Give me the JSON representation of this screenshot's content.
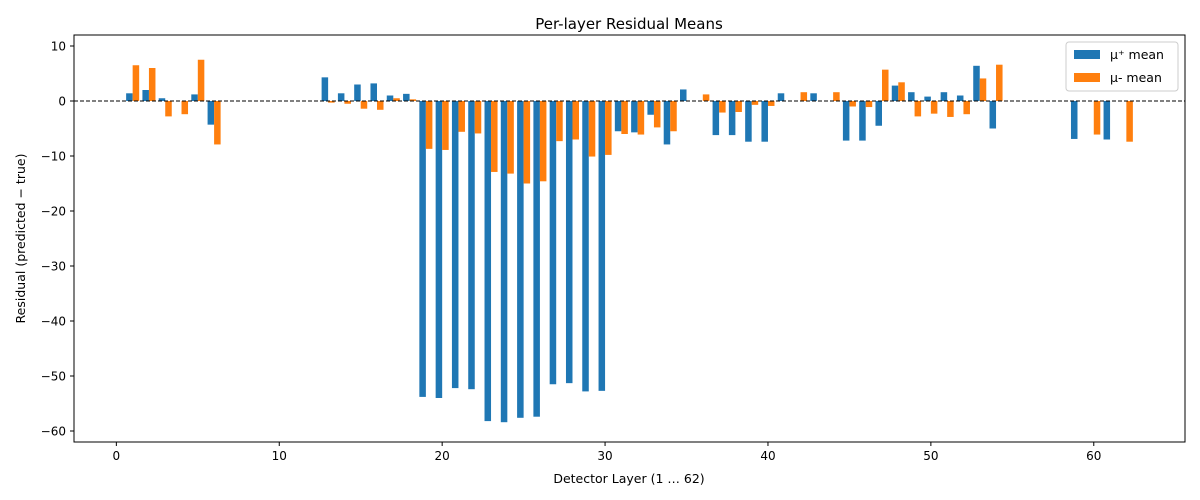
{
  "chart_data": {
    "type": "bar",
    "title": "Per-layer Residual Means",
    "xlabel": "Detector Layer (1 … 62)",
    "ylabel": "Residual (predicted − true)",
    "xlim": [
      -2.6,
      65.6
    ],
    "ylim": [
      -62,
      12
    ],
    "xticks": [
      0,
      10,
      20,
      30,
      40,
      50,
      60
    ],
    "yticks": [
      10,
      0,
      -10,
      -20,
      -30,
      -40,
      -50,
      -60
    ],
    "xtick_labels": [
      "0",
      "10",
      "20",
      "30",
      "40",
      "50",
      "60"
    ],
    "ytick_labels": [
      "10",
      "0",
      "−10",
      "−20",
      "−30",
      "−40",
      "−50",
      "−60"
    ],
    "reference_line": {
      "y": 0,
      "style": "dashed",
      "color": "#000000"
    },
    "grid": false,
    "legend": {
      "position": "top-right"
    },
    "series": [
      {
        "name": "μ⁺ mean",
        "color": "#1f77b4",
        "offset": -0.2,
        "x": [
          1,
          2,
          3,
          5,
          6,
          13,
          14,
          15,
          16,
          17,
          18,
          19,
          20,
          21,
          22,
          23,
          24,
          25,
          26,
          27,
          28,
          29,
          30,
          31,
          32,
          33,
          34,
          35,
          37,
          38,
          39,
          40,
          41,
          43,
          45,
          46,
          47,
          48,
          49,
          50,
          51,
          52,
          53,
          54,
          59,
          61
        ],
        "values": [
          1.4,
          2.0,
          0.5,
          1.2,
          -4.3,
          4.3,
          1.4,
          3.0,
          3.2,
          1.0,
          1.3,
          -53.8,
          -54.0,
          -52.2,
          -52.4,
          -58.2,
          -58.4,
          -57.6,
          -57.4,
          -51.5,
          -51.3,
          -52.8,
          -52.7,
          -5.5,
          -5.7,
          -2.5,
          -7.9,
          2.1,
          -6.2,
          -6.2,
          -7.4,
          -7.4,
          1.4,
          1.4,
          -7.2,
          -7.2,
          -4.5,
          2.8,
          1.6,
          0.8,
          1.6,
          1.0,
          6.4,
          -5.0,
          -6.9,
          -7.0
        ]
      },
      {
        "name": "μ- mean",
        "color": "#ff7f0e",
        "offset": 0.2,
        "x": [
          1,
          2,
          3,
          4,
          5,
          6,
          13,
          14,
          15,
          16,
          17,
          18,
          19,
          20,
          21,
          22,
          23,
          24,
          25,
          26,
          27,
          28,
          29,
          30,
          31,
          32,
          33,
          34,
          36,
          37,
          38,
          39,
          40,
          42,
          44,
          45,
          46,
          47,
          48,
          49,
          50,
          51,
          52,
          53,
          54,
          60,
          62
        ],
        "values": [
          6.5,
          6.0,
          -2.8,
          -2.4,
          7.5,
          -7.9,
          -0.3,
          -0.5,
          -1.4,
          -1.6,
          0.5,
          0.3,
          -8.7,
          -8.9,
          -5.6,
          -5.9,
          -12.9,
          -13.2,
          -15.0,
          -14.6,
          -7.3,
          -7.0,
          -10.1,
          -9.8,
          -6.0,
          -6.1,
          -4.8,
          -5.5,
          1.2,
          -2.1,
          -2.0,
          -0.7,
          -0.9,
          1.6,
          1.6,
          -1.0,
          -1.1,
          5.7,
          3.4,
          -2.8,
          -2.3,
          -2.9,
          -2.4,
          4.1,
          6.6,
          -6.1,
          -7.4
        ]
      }
    ]
  }
}
